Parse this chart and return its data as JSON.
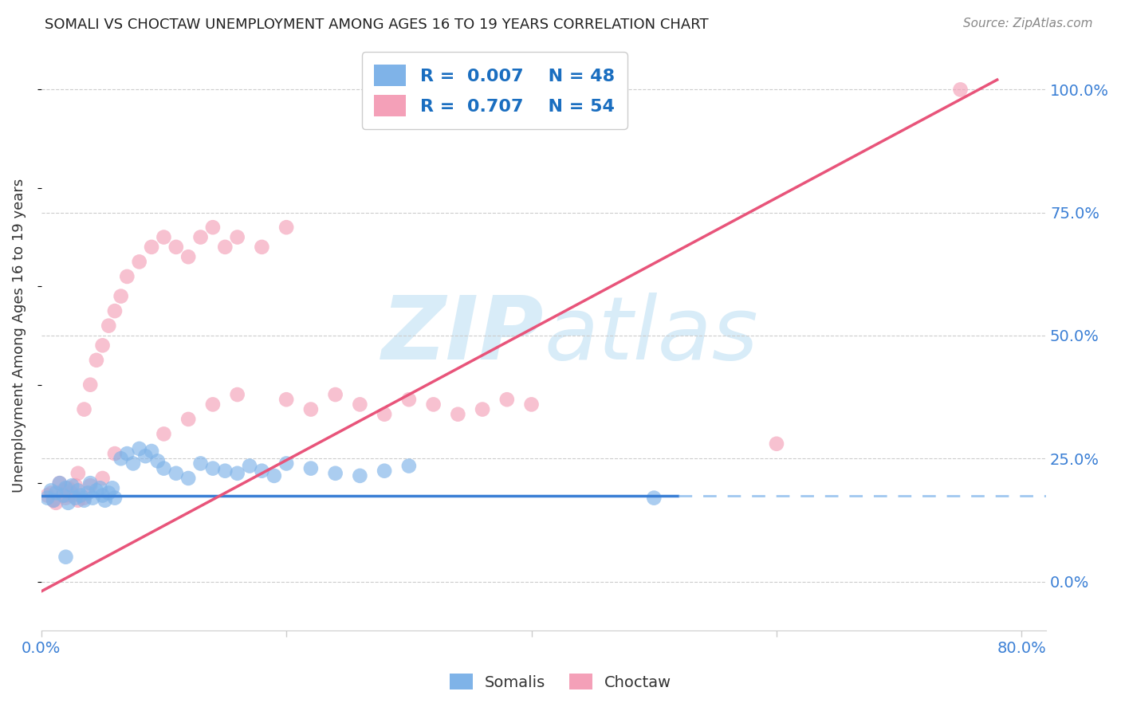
{
  "title": "SOMALI VS CHOCTAW UNEMPLOYMENT AMONG AGES 16 TO 19 YEARS CORRELATION CHART",
  "source": "Source: ZipAtlas.com",
  "ylabel": "Unemployment Among Ages 16 to 19 years",
  "xlim": [
    0.0,
    0.82
  ],
  "ylim": [
    -0.1,
    1.1
  ],
  "xtick_positions": [
    0.0,
    0.2,
    0.4,
    0.6,
    0.8
  ],
  "xticklabels": [
    "0.0%",
    "",
    "",
    "",
    "80.0%"
  ],
  "yticks_right": [
    0.0,
    0.25,
    0.5,
    0.75,
    1.0
  ],
  "yticklabels_right": [
    "0.0%",
    "25.0%",
    "50.0%",
    "75.0%",
    "100.0%"
  ],
  "somali_R": "0.007",
  "somali_N": "48",
  "choctaw_R": "0.707",
  "choctaw_N": "54",
  "somali_color": "#7fb3e8",
  "choctaw_color": "#f4a0b8",
  "somali_line_color": "#3a7fd5",
  "somali_line_dash_color": "#a0c8f0",
  "choctaw_line_color": "#e8547a",
  "grid_color": "#cccccc",
  "background_color": "#ffffff",
  "watermark_color": "#d8ecf8",
  "somali_x": [
    0.005,
    0.008,
    0.01,
    0.012,
    0.015,
    0.018,
    0.02,
    0.022,
    0.025,
    0.028,
    0.03,
    0.032,
    0.035,
    0.038,
    0.04,
    0.042,
    0.045,
    0.048,
    0.05,
    0.052,
    0.055,
    0.058,
    0.06,
    0.065,
    0.07,
    0.075,
    0.08,
    0.085,
    0.09,
    0.095,
    0.1,
    0.11,
    0.12,
    0.13,
    0.14,
    0.15,
    0.16,
    0.17,
    0.18,
    0.19,
    0.2,
    0.22,
    0.24,
    0.26,
    0.28,
    0.3,
    0.5,
    0.02
  ],
  "somali_y": [
    0.17,
    0.185,
    0.165,
    0.18,
    0.2,
    0.175,
    0.19,
    0.16,
    0.195,
    0.17,
    0.185,
    0.175,
    0.165,
    0.18,
    0.2,
    0.17,
    0.185,
    0.19,
    0.175,
    0.165,
    0.18,
    0.19,
    0.17,
    0.25,
    0.26,
    0.24,
    0.27,
    0.255,
    0.265,
    0.245,
    0.23,
    0.22,
    0.21,
    0.24,
    0.23,
    0.225,
    0.22,
    0.235,
    0.225,
    0.215,
    0.24,
    0.23,
    0.22,
    0.215,
    0.225,
    0.235,
    0.17,
    0.05
  ],
  "choctaw_x": [
    0.005,
    0.008,
    0.01,
    0.012,
    0.015,
    0.018,
    0.02,
    0.022,
    0.025,
    0.028,
    0.03,
    0.035,
    0.04,
    0.045,
    0.05,
    0.055,
    0.06,
    0.065,
    0.07,
    0.08,
    0.09,
    0.1,
    0.11,
    0.12,
    0.13,
    0.14,
    0.15,
    0.16,
    0.18,
    0.2,
    0.02,
    0.025,
    0.03,
    0.035,
    0.04,
    0.05,
    0.06,
    0.1,
    0.12,
    0.14,
    0.16,
    0.2,
    0.22,
    0.24,
    0.26,
    0.28,
    0.3,
    0.32,
    0.34,
    0.36,
    0.38,
    0.4,
    0.6,
    0.75
  ],
  "choctaw_y": [
    0.175,
    0.18,
    0.165,
    0.16,
    0.2,
    0.185,
    0.17,
    0.19,
    0.175,
    0.195,
    0.22,
    0.35,
    0.4,
    0.45,
    0.48,
    0.52,
    0.55,
    0.58,
    0.62,
    0.65,
    0.68,
    0.7,
    0.68,
    0.66,
    0.7,
    0.72,
    0.68,
    0.7,
    0.68,
    0.72,
    0.175,
    0.18,
    0.165,
    0.17,
    0.195,
    0.21,
    0.26,
    0.3,
    0.33,
    0.36,
    0.38,
    0.37,
    0.35,
    0.38,
    0.36,
    0.34,
    0.37,
    0.36,
    0.34,
    0.35,
    0.37,
    0.36,
    0.28,
    1.0
  ],
  "choctaw_line_x0": 0.0,
  "choctaw_line_y0": -0.02,
  "choctaw_line_x1": 0.78,
  "choctaw_line_y1": 1.02,
  "somali_line_y": 0.175,
  "somali_line_x_solid_end": 0.52,
  "somali_line_x_dash_end": 0.82
}
